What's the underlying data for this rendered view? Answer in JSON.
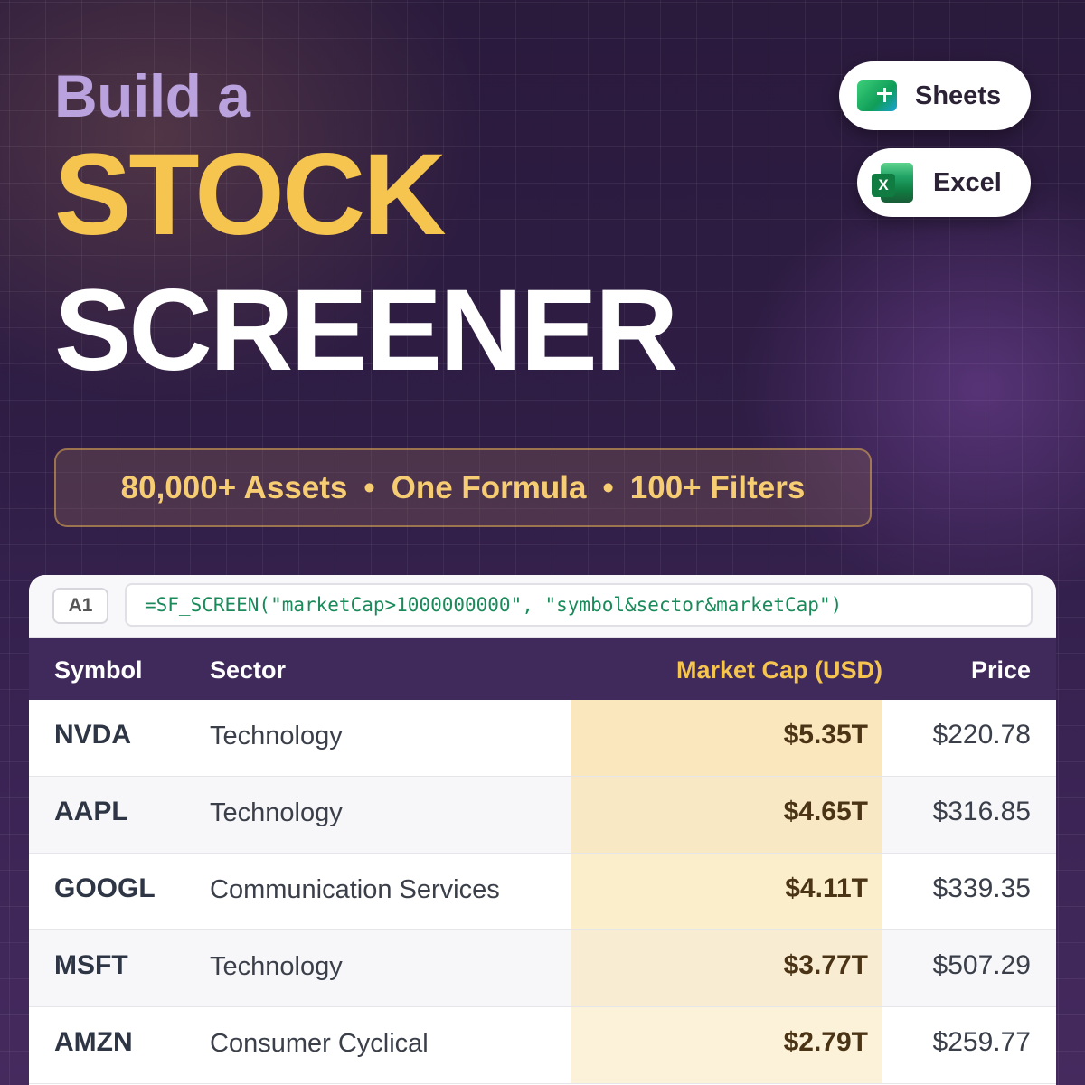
{
  "headline": {
    "line1": "Build a",
    "line2": "STOCK",
    "line3": "SCREENER"
  },
  "platforms": [
    {
      "label": "Sheets",
      "icon": "google-sheets-icon"
    },
    {
      "label": "Excel",
      "icon": "excel-icon",
      "icon_letter": "X"
    }
  ],
  "features": {
    "item1": "80,000+ Assets",
    "item2": "One Formula",
    "item3": "100+ Filters",
    "separator": "•"
  },
  "spreadsheet": {
    "cell_ref": "A1",
    "formula": "=SF_SCREEN(\"marketCap>1000000000\", \"symbol&sector&marketCap\")",
    "headers": {
      "symbol": "Symbol",
      "sector": "Sector",
      "market_cap": "Market Cap (USD)",
      "price": "Price"
    },
    "rows": [
      {
        "symbol": "NVDA",
        "sector": "Technology",
        "market_cap": "$5.35T",
        "price": "$220.78"
      },
      {
        "symbol": "AAPL",
        "sector": "Technology",
        "market_cap": "$4.65T",
        "price": "$316.85"
      },
      {
        "symbol": "GOOGL",
        "sector": "Communication Services",
        "market_cap": "$4.11T",
        "price": "$339.35"
      },
      {
        "symbol": "MSFT",
        "sector": "Technology",
        "market_cap": "$3.77T",
        "price": "$507.29"
      },
      {
        "symbol": "AMZN",
        "sector": "Consumer Cyclical",
        "market_cap": "$2.79T",
        "price": "$259.77"
      }
    ]
  },
  "colors": {
    "accent_gold": "#f5c550",
    "header_purple": "#3f2a5b",
    "lavender": "#b9a2dd",
    "cap_highlight": [
      "#fbe7bd",
      "#f8e8c4",
      "#fbeecb",
      "#f8ecd3",
      "#fcf2da"
    ]
  }
}
